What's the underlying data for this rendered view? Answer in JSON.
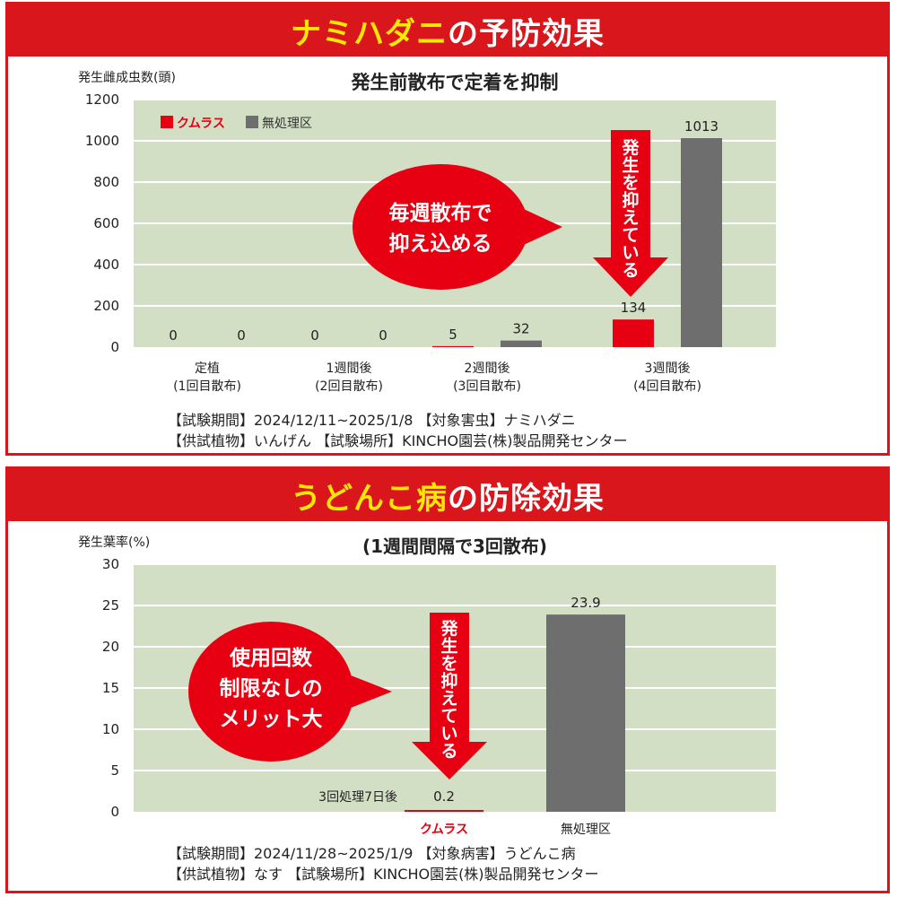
{
  "colors": {
    "banner": "#d9161c",
    "banner_highlight": "#ffe800",
    "plot_bg": "#d3dfc4",
    "kumulas": "#e60012",
    "control": "#6e6e6e"
  },
  "chart_data": [
    {
      "type": "bar",
      "banner_highlight": "ナミハダニ",
      "banner_rest": "の予防効果",
      "title": "発生前散布で定着を抑制",
      "ylabel": "発生雌成虫数(頭)",
      "ylim": [
        0,
        1200
      ],
      "yticks": [
        0,
        200,
        400,
        600,
        800,
        1000,
        1200
      ],
      "grid": true,
      "legend_position": "top-left",
      "categories": [
        [
          "定植",
          "(1回目散布)"
        ],
        [
          "1週間後",
          "(2回目散布)"
        ],
        [
          "2週間後",
          "(3回目散布)"
        ],
        [
          "3週間後",
          "(4回目散布)"
        ]
      ],
      "series": [
        {
          "name": "クムラス",
          "color": "#e60012",
          "values": [
            0,
            0,
            5,
            134
          ]
        },
        {
          "name": "無処理区",
          "color": "#6e6e6e",
          "values": [
            0,
            0,
            32,
            1013
          ]
        }
      ],
      "data_labels": [
        [
          "0",
          "0"
        ],
        [
          "0",
          "0"
        ],
        [
          "5",
          "32"
        ],
        [
          "134",
          "1013"
        ]
      ],
      "callout": [
        "毎週散布で",
        "抑え込める"
      ],
      "arrow_text": "発生を抑えている",
      "footer": [
        "【試験期間】2024/12/11~2025/1/8 【対象害虫】ナミハダニ",
        "【供試植物】いんげん 【試験場所】KINCHO園芸(株)製品開発センター"
      ]
    },
    {
      "type": "bar",
      "banner_highlight": "うどんこ病",
      "banner_rest": "の防除効果",
      "title": "(1週間間隔で3回散布)",
      "ylabel": "発生葉率(%)",
      "ylim": [
        0,
        30
      ],
      "yticks": [
        0,
        5,
        10,
        15,
        20,
        25,
        30
      ],
      "grid": true,
      "categories": [
        "クムラス",
        "無処理区"
      ],
      "category_colors": [
        "#e60012",
        "#222222"
      ],
      "values": [
        0.2,
        23.9
      ],
      "bar_colors": [
        "#e60012",
        "#6e6e6e"
      ],
      "data_labels": [
        "0.2",
        "23.9"
      ],
      "annotation": "3回処理7日後",
      "callout": [
        "使用回数",
        "制限なしの",
        "メリット大"
      ],
      "arrow_text": "発生を抑えている",
      "footer": [
        "【試験期間】2024/11/28~2025/1/9 【対象病害】うどんこ病",
        "【供試植物】なす 【試験場所】KINCHO園芸(株)製品開発センター"
      ]
    }
  ]
}
